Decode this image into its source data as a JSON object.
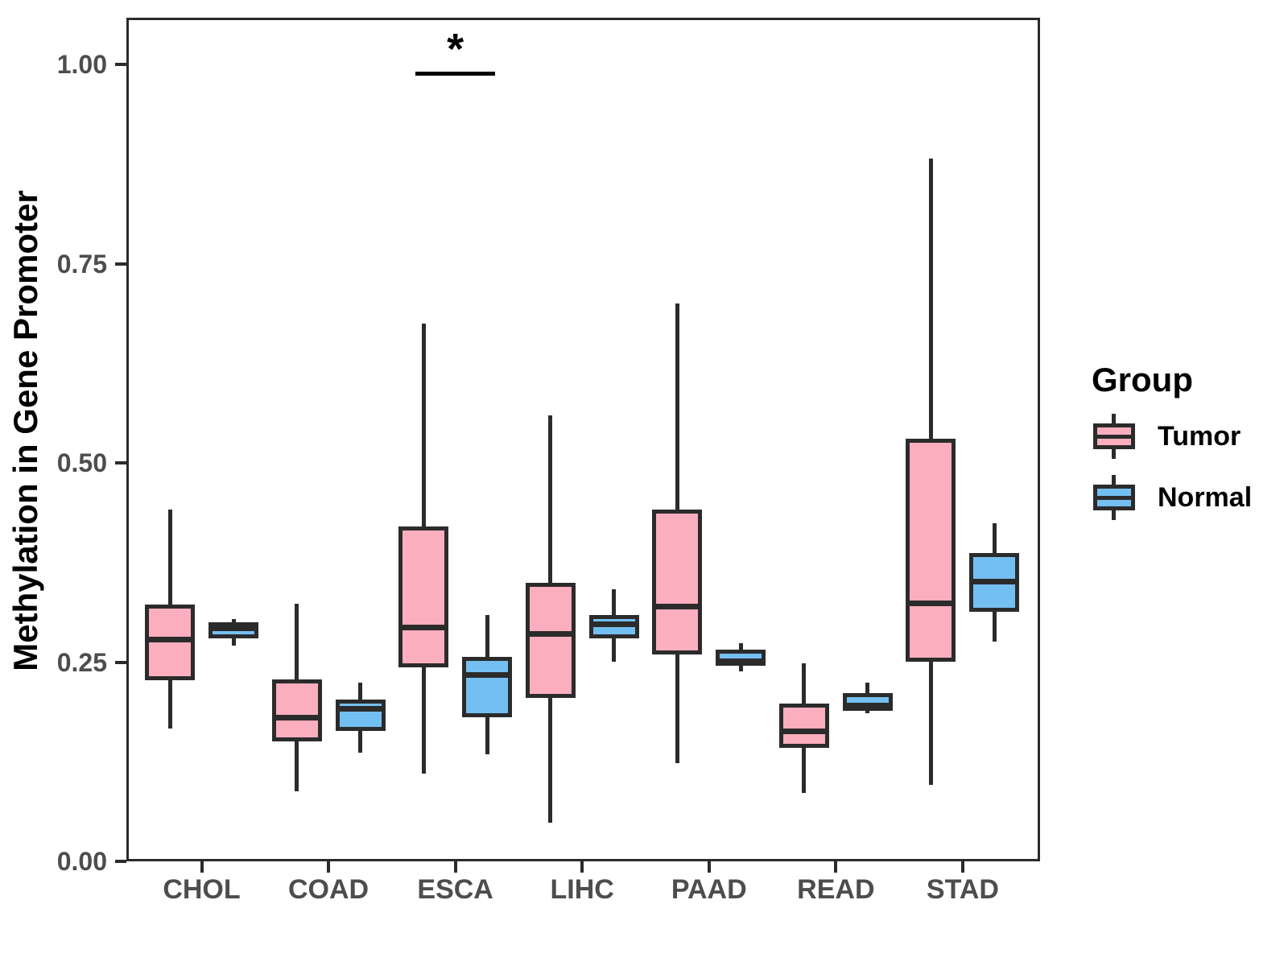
{
  "y_axis": {
    "title": "Methylation in Gene Promoter",
    "ticks": [
      "1.00",
      "0.75",
      "0.50",
      "0.25",
      "0.00"
    ],
    "tick_values": [
      1.0,
      0.75,
      0.5,
      0.25,
      0.0
    ]
  },
  "x_axis": {
    "title": ""
  },
  "legend": {
    "title": "Group",
    "entries": [
      {
        "label": "Tumor",
        "color": "#FBAEBE"
      },
      {
        "label": "Normal",
        "color": "#74BFF2"
      }
    ]
  },
  "annotation": {
    "label": "*",
    "group": "ESCA",
    "bar_y": 0.988
  },
  "colors": {
    "tumor_fill": "#FBAEBE",
    "normal_fill": "#74BFF2",
    "stroke": "#2B2B2B",
    "tick_text": "#4D4D4D",
    "title_text": "#000000"
  },
  "chart_data": {
    "type": "boxplot",
    "title": "",
    "xlabel": "",
    "ylabel": "Methylation in Gene Promoter",
    "ylim": [
      0,
      1.06
    ],
    "grid": false,
    "legend_position": "right",
    "categories": [
      "CHOL",
      "COAD",
      "ESCA",
      "LIHC",
      "PAAD",
      "READ",
      "STAD"
    ],
    "series": [
      {
        "name": "Tumor",
        "color": "#FBAEBE",
        "boxes": [
          {
            "min": 0.167,
            "q1": 0.227,
            "med": 0.278,
            "q3": 0.322,
            "max": 0.441
          },
          {
            "min": 0.088,
            "q1": 0.15,
            "med": 0.18,
            "q3": 0.228,
            "max": 0.323
          },
          {
            "min": 0.11,
            "q1": 0.243,
            "med": 0.293,
            "q3": 0.42,
            "max": 0.675
          },
          {
            "min": 0.048,
            "q1": 0.205,
            "med": 0.285,
            "q3": 0.349,
            "max": 0.56
          },
          {
            "min": 0.123,
            "q1": 0.26,
            "med": 0.32,
            "q3": 0.441,
            "max": 0.7
          },
          {
            "min": 0.086,
            "q1": 0.142,
            "med": 0.163,
            "q3": 0.198,
            "max": 0.248
          },
          {
            "min": 0.096,
            "q1": 0.25,
            "med": 0.324,
            "q3": 0.53,
            "max": 0.882
          }
        ]
      },
      {
        "name": "Normal",
        "color": "#74BFF2",
        "boxes": [
          {
            "min": 0.271,
            "q1": 0.28,
            "med": 0.292,
            "q3": 0.3,
            "max": 0.304
          },
          {
            "min": 0.136,
            "q1": 0.164,
            "med": 0.191,
            "q3": 0.203,
            "max": 0.224
          },
          {
            "min": 0.134,
            "q1": 0.181,
            "med": 0.234,
            "q3": 0.257,
            "max": 0.309
          },
          {
            "min": 0.25,
            "q1": 0.28,
            "med": 0.297,
            "q3": 0.309,
            "max": 0.341
          },
          {
            "min": 0.238,
            "q1": 0.245,
            "med": 0.251,
            "q3": 0.266,
            "max": 0.274
          },
          {
            "min": 0.186,
            "q1": 0.189,
            "med": 0.195,
            "q3": 0.211,
            "max": 0.224
          },
          {
            "min": 0.276,
            "q1": 0.313,
            "med": 0.351,
            "q3": 0.387,
            "max": 0.424
          }
        ]
      }
    ]
  }
}
